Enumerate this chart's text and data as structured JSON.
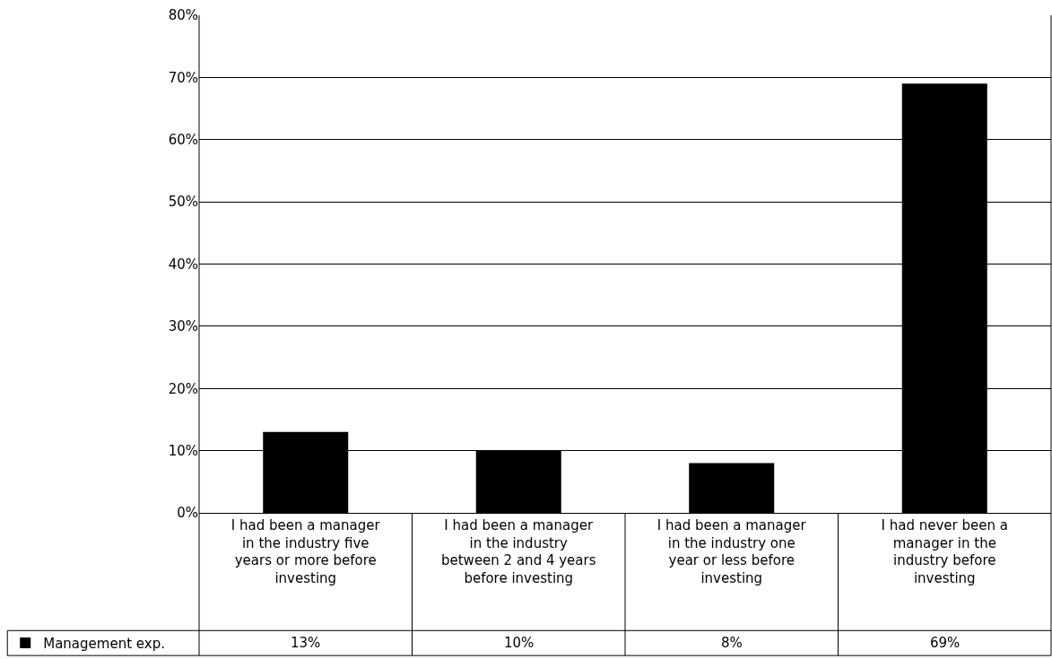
{
  "chart_data": {
    "type": "bar",
    "categories": [
      "I had been a manager in the industry five years or more before investing",
      "I had been a manager in the industry between 2 and 4 years before investing",
      "I had been a manager in the industry one year or less before investing",
      "I had never been a manager in the industry before investing"
    ],
    "series": [
      {
        "name": "Management exp.",
        "color": "#000000",
        "values": [
          13,
          10,
          8,
          69
        ],
        "value_labels": [
          "13%",
          "10%",
          "8%",
          "69%"
        ]
      }
    ],
    "ylim": [
      0,
      80
    ],
    "yticks": [
      {
        "value": 0,
        "label": "0%"
      },
      {
        "value": 10,
        "label": "10%"
      },
      {
        "value": 20,
        "label": "20%"
      },
      {
        "value": 30,
        "label": "30%"
      },
      {
        "value": 40,
        "label": "40%"
      },
      {
        "value": 50,
        "label": "50%"
      },
      {
        "value": 60,
        "label": "60%"
      },
      {
        "value": 70,
        "label": "70%"
      },
      {
        "value": 80,
        "label": "80%"
      }
    ],
    "grid": "y",
    "legend": "bottom left"
  }
}
